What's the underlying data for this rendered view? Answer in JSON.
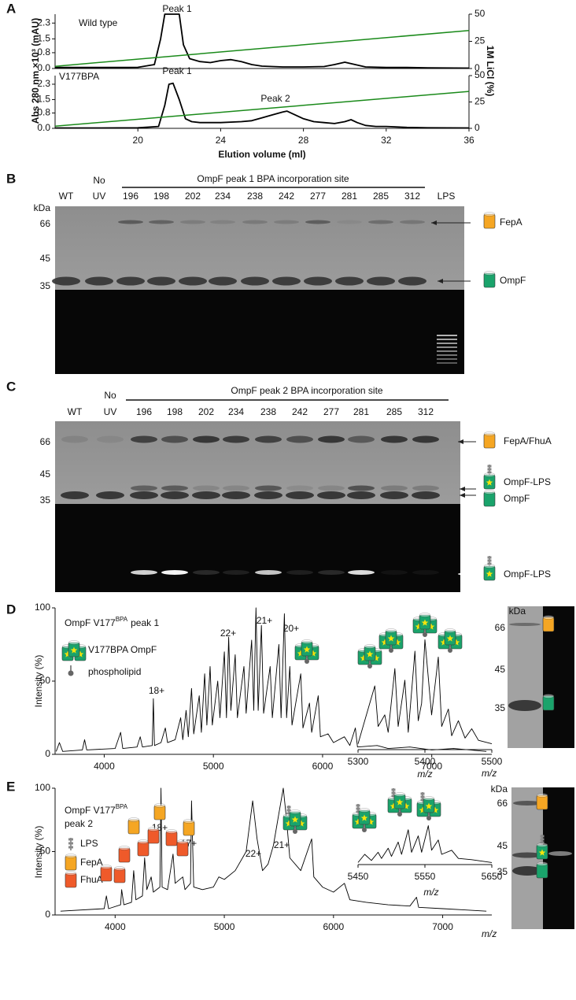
{
  "panel_labels": [
    "A",
    "B",
    "C",
    "D",
    "E"
  ],
  "chart_data": [
    {
      "type": "line",
      "title": "Wild type",
      "annotations": [
        "Peak 1"
      ],
      "ylabel": "Abs 280 nm ×10³ (mAU)",
      "y2label": "1M LiCl (%)",
      "xlim": [
        16,
        36
      ],
      "ylim": [
        0,
        2.75
      ],
      "yticks": [
        {
          "value": 0,
          "label": "0.0"
        },
        0.8,
        1.5,
        2.3
      ],
      "y2lim": [
        0,
        50
      ],
      "y2ticks": [
        0,
        25,
        50
      ],
      "series": [
        {
          "color": "#000000",
          "x": [
            16,
            17,
            18,
            19,
            20,
            20.8,
            21.1,
            21.3,
            21.5,
            22,
            22.2,
            22.5,
            23,
            23.5,
            24,
            24.5,
            25,
            25.5,
            26,
            27,
            28,
            29,
            29.5,
            30,
            30.5,
            31,
            32,
            33,
            34,
            36
          ],
          "values": [
            0.05,
            0.05,
            0.05,
            0.05,
            0.06,
            0.2,
            1.5,
            2.75,
            2.75,
            2.75,
            1.2,
            0.5,
            0.35,
            0.3,
            0.4,
            0.45,
            0.35,
            0.2,
            0.12,
            0.08,
            0.08,
            0.1,
            0.2,
            0.32,
            0.2,
            0.08,
            0.05,
            0.05,
            0.03,
            0.02
          ]
        },
        {
          "color": "#1a8a1a",
          "axis": "y2",
          "x": [
            16,
            36
          ],
          "values": [
            2,
            35
          ]
        }
      ]
    },
    {
      "type": "line",
      "title": "V177BPA",
      "annotations": [
        "Peak 1",
        "Peak 2"
      ],
      "xlabel": "Elution volume (ml)",
      "xlim": [
        16,
        36
      ],
      "xticks": [
        20,
        24,
        28,
        32,
        36
      ],
      "ylim": [
        0,
        2.75
      ],
      "yticks": [
        {
          "value": 0,
          "label": "0.0"
        },
        0.8,
        1.5,
        2.3
      ],
      "y2lim": [
        0,
        50
      ],
      "y2ticks": [
        0,
        25,
        50
      ],
      "series": [
        {
          "color": "#000000",
          "x": [
            16,
            18,
            20,
            21,
            21.3,
            21.5,
            21.7,
            22,
            22.3,
            22.6,
            23,
            24,
            25,
            25.5,
            26,
            26.5,
            27,
            27.2,
            27.5,
            28,
            28.5,
            29,
            29.5,
            30,
            30.3,
            30.6,
            31,
            31.5,
            32,
            33,
            34,
            36
          ],
          "values": [
            0.02,
            0.02,
            0.03,
            0.1,
            1.2,
            2.3,
            2.35,
            1.5,
            0.5,
            0.35,
            0.3,
            0.3,
            0.35,
            0.4,
            0.55,
            0.7,
            0.85,
            0.9,
            0.75,
            0.5,
            0.35,
            0.3,
            0.25,
            0.35,
            0.45,
            0.3,
            0.15,
            0.1,
            0.1,
            0.05,
            0.03,
            0.02
          ]
        },
        {
          "color": "#1a8a1a",
          "axis": "y2",
          "x": [
            16,
            36
          ],
          "values": [
            2,
            35
          ]
        }
      ]
    },
    {
      "type": "line",
      "title": "OmpF V177",
      "title_sup": "BPA",
      "title_end": "peak 1",
      "legend": [
        "V177BPA OmpF",
        "phospholipid"
      ],
      "annotations": [
        "18+",
        "22+",
        "21+",
        "20+"
      ],
      "ylabel": "Intensity (%)",
      "xlabel": "m/z",
      "xlim": [
        3550,
        7550
      ],
      "xticks": [
        4000,
        5000,
        6000,
        7000
      ],
      "ylim": [
        0,
        100
      ],
      "yticks": [
        0,
        50,
        100
      ],
      "x": [
        3560,
        3590,
        3620,
        3800,
        3820,
        3840,
        4100,
        4150,
        4170,
        4300,
        4330,
        4350,
        4440,
        4450,
        4460,
        4520,
        4560,
        4580,
        4650,
        4700,
        4720,
        4750,
        4770,
        4800,
        4820,
        4870,
        4890,
        4920,
        4940,
        4970,
        4990,
        5040,
        5060,
        5100,
        5120,
        5140,
        5160,
        5200,
        5220,
        5280,
        5300,
        5350,
        5370,
        5390,
        5410,
        5440,
        5460,
        5520,
        5540,
        5600,
        5620,
        5650,
        5670,
        5700,
        5720,
        5800,
        5820,
        5880,
        5900,
        5960,
        5980,
        6050,
        6100,
        6200,
        6250,
        6300,
        6320,
        6500,
        6600,
        6800,
        7000,
        7200,
        7500
      ],
      "series": [
        {
          "color": "#000000",
          "values": [
            2,
            8,
            2,
            3,
            10,
            3,
            4,
            15,
            4,
            5,
            12,
            5,
            6,
            38,
            6,
            8,
            18,
            8,
            10,
            25,
            10,
            30,
            12,
            45,
            14,
            40,
            15,
            55,
            20,
            60,
            20,
            50,
            25,
            70,
            25,
            80,
            30,
            68,
            25,
            60,
            28,
            78,
            30,
            100,
            30,
            88,
            28,
            60,
            25,
            75,
            25,
            96,
            25,
            60,
            20,
            55,
            18,
            35,
            15,
            40,
            12,
            14,
            8,
            12,
            6,
            18,
            5,
            6,
            4,
            5,
            3,
            4,
            2
          ]
        }
      ]
    },
    {
      "type": "line",
      "xlabel": "m/z",
      "xlim": [
        5300,
        5500
      ],
      "xticks": [
        5300,
        5400,
        5500
      ],
      "ylim": [
        0,
        100
      ],
      "x": [
        5300,
        5325,
        5330,
        5340,
        5345,
        5355,
        5360,
        5370,
        5375,
        5385,
        5390,
        5395,
        5400,
        5410,
        5420,
        5425,
        5435,
        5440,
        5450,
        5460,
        5470,
        5480,
        5500
      ],
      "series": [
        {
          "color": "#000000",
          "values": [
            5,
            55,
            20,
            30,
            15,
            70,
            20,
            60,
            15,
            85,
            25,
            40,
            95,
            30,
            80,
            20,
            35,
            12,
            25,
            10,
            18,
            8,
            5
          ]
        }
      ]
    },
    {
      "type": "line",
      "title": "OmpF V177",
      "title_sup": "BPA",
      "title_line2": "peak 2",
      "legend": [
        "LPS",
        "FepA",
        "FhuA"
      ],
      "annotations": [
        "18+",
        "17+",
        "22+",
        "21+"
      ],
      "ylabel": "Intensity (%)",
      "xlabel": "m/z",
      "xlim": [
        3450,
        7450
      ],
      "xticks": [
        4000,
        5000,
        6000,
        7000
      ],
      "ylim": [
        0,
        100
      ],
      "yticks": [
        0,
        50,
        100
      ],
      "x": [
        3500,
        3900,
        3920,
        3940,
        4050,
        4060,
        4080,
        4150,
        4170,
        4190,
        4250,
        4270,
        4290,
        4330,
        4350,
        4410,
        4420,
        4430,
        4480,
        4530,
        4550,
        4620,
        4640,
        4690,
        4700,
        4720,
        4800,
        4900,
        4950,
        5000,
        5100,
        5200,
        5260,
        5300,
        5350,
        5400,
        5450,
        5500,
        5540,
        5570,
        5600,
        5700,
        5800,
        5820,
        5900,
        6000,
        6100,
        6150,
        6300,
        6500,
        6700,
        6760,
        6780,
        7000,
        7200,
        7400
      ],
      "series": [
        {
          "color": "#000000",
          "values": [
            3,
            5,
            15,
            5,
            8,
            20,
            8,
            10,
            35,
            12,
            15,
            45,
            20,
            30,
            18,
            22,
            100,
            22,
            20,
            48,
            25,
            30,
            20,
            25,
            90,
            22,
            20,
            22,
            30,
            28,
            35,
            50,
            90,
            60,
            35,
            40,
            55,
            80,
            100,
            75,
            45,
            35,
            60,
            30,
            22,
            18,
            25,
            12,
            10,
            8,
            7,
            14,
            6,
            5,
            4,
            3
          ]
        }
      ]
    },
    {
      "type": "line",
      "xlabel": "m/z",
      "xlim": [
        5450,
        5650
      ],
      "xticks": [
        5450,
        5550,
        5650
      ],
      "ylim": [
        0,
        100
      ],
      "x": [
        5450,
        5460,
        5470,
        5480,
        5485,
        5495,
        5500,
        5510,
        5515,
        5525,
        5530,
        5540,
        5545,
        5555,
        5560,
        5570,
        5575,
        5590,
        5600,
        5620,
        5650
      ],
      "series": [
        {
          "color": "#000000",
          "values": [
            5,
            25,
            10,
            30,
            15,
            40,
            20,
            55,
            25,
            85,
            30,
            70,
            30,
            95,
            35,
            60,
            25,
            35,
            15,
            12,
            5
          ]
        }
      ]
    }
  ],
  "gel_B": {
    "header": "OmpF peak 1 BPA incorporation site",
    "lanes": [
      "WT",
      [
        "No",
        "UV"
      ],
      "196",
      "198",
      "202",
      "234",
      "238",
      "242",
      "277",
      "281",
      "285",
      "312",
      "LPS"
    ],
    "unit": "kDa",
    "markers": [
      66,
      45,
      35
    ],
    "bands": [
      "FepA",
      "OmpF"
    ]
  },
  "gel_C": {
    "header": "OmpF peak 2 BPA incorporation site",
    "lanes": [
      "WT",
      [
        "No",
        "UV"
      ],
      "196",
      "198",
      "202",
      "234",
      "238",
      "242",
      "277",
      "281",
      "285",
      "312"
    ],
    "markers": [
      66,
      45,
      35
    ],
    "bands": [
      "FepA/FhuA",
      "OmpF-LPS",
      "OmpF",
      "OmpF-LPS"
    ]
  },
  "gel_D": {
    "unit": "kDa",
    "markers": [
      66,
      45,
      35
    ]
  },
  "gel_E": {
    "unit": "kDa",
    "markers": [
      66,
      45,
      35
    ]
  }
}
